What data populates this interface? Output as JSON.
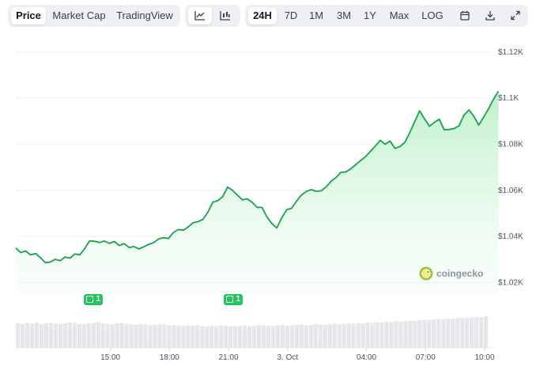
{
  "toolbar": {
    "view_tabs": [
      "Price",
      "Market Cap",
      "TradingView"
    ],
    "active_view": "Price",
    "chart_type_icons": [
      "line-chart-icon",
      "candlestick-chart-icon"
    ],
    "ranges": [
      "24H",
      "7D",
      "1M",
      "3M",
      "1Y",
      "Max",
      "LOG"
    ],
    "active_range": "24H",
    "tool_icons": [
      "calendar-icon",
      "download-icon",
      "expand-icon"
    ]
  },
  "brand": {
    "name": "coingecko"
  },
  "markers": [
    {
      "label": "1",
      "x_time": "15:00"
    },
    {
      "label": "1",
      "x_time": "21:00"
    }
  ],
  "colors": {
    "line": "#16a34a",
    "area_top": "#bbf0c8",
    "grid": "#eef0f3",
    "volume": "#e5e7eb",
    "marker": "#22c55e"
  },
  "chart_data": {
    "type": "area",
    "title": "",
    "xlabel": "",
    "ylabel": "",
    "ylim": [
      1015,
      1122
    ],
    "y_ticks": [
      "$1.12K",
      "$1.1K",
      "$1.08K",
      "$1.06K",
      "$1.04K",
      "$1.02K"
    ],
    "y_tick_values": [
      1120,
      1100,
      1080,
      1060,
      1040,
      1020
    ],
    "x_ticks": [
      "15:00",
      "18:00",
      "21:00",
      "3. Oct",
      "04:00",
      "07:00",
      "10:00"
    ],
    "x_tick_hours": [
      15,
      18,
      21,
      24,
      28,
      31,
      34
    ],
    "x_range_hours": [
      10.2,
      34.2
    ],
    "grid": true,
    "series": [
      {
        "values": [
          [
            10.2,
            1035.0
          ],
          [
            10.45,
            1033.0
          ],
          [
            10.7,
            1033.7
          ],
          [
            10.95,
            1032.0
          ],
          [
            11.2,
            1032.6
          ],
          [
            11.45,
            1030.8
          ],
          [
            11.7,
            1028.6
          ],
          [
            11.95,
            1028.9
          ],
          [
            12.2,
            1030.1
          ],
          [
            12.45,
            1029.5
          ],
          [
            12.7,
            1031.1
          ],
          [
            12.95,
            1030.6
          ],
          [
            13.2,
            1032.4
          ],
          [
            13.45,
            1032.0
          ],
          [
            13.7,
            1034.8
          ],
          [
            13.95,
            1038.1
          ],
          [
            14.2,
            1037.9
          ],
          [
            14.45,
            1037.4
          ],
          [
            14.7,
            1038.0
          ],
          [
            14.95,
            1037.0
          ],
          [
            15.2,
            1037.8
          ],
          [
            15.45,
            1036.1
          ],
          [
            15.7,
            1036.9
          ],
          [
            15.95,
            1035.2
          ],
          [
            16.2,
            1035.6
          ],
          [
            16.45,
            1034.6
          ],
          [
            16.7,
            1035.5
          ],
          [
            16.95,
            1036.6
          ],
          [
            17.2,
            1037.3
          ],
          [
            17.45,
            1038.9
          ],
          [
            17.7,
            1039.5
          ],
          [
            17.95,
            1039.1
          ],
          [
            18.2,
            1041.7
          ],
          [
            18.45,
            1043.0
          ],
          [
            18.7,
            1042.7
          ],
          [
            18.95,
            1044.1
          ],
          [
            19.2,
            1045.9
          ],
          [
            19.45,
            1046.4
          ],
          [
            19.7,
            1047.4
          ],
          [
            19.95,
            1050.5
          ],
          [
            20.2,
            1054.9
          ],
          [
            20.45,
            1055.5
          ],
          [
            20.7,
            1057.2
          ],
          [
            20.95,
            1061.4
          ],
          [
            21.2,
            1060.0
          ],
          [
            21.45,
            1057.9
          ],
          [
            21.7,
            1055.9
          ],
          [
            21.95,
            1056.3
          ],
          [
            22.2,
            1054.8
          ],
          [
            22.45,
            1052.6
          ],
          [
            22.7,
            1052.6
          ],
          [
            22.95,
            1048.4
          ],
          [
            23.2,
            1045.6
          ],
          [
            23.45,
            1043.7
          ],
          [
            23.7,
            1048.1
          ],
          [
            23.95,
            1051.6
          ],
          [
            24.2,
            1052.2
          ],
          [
            24.45,
            1055.3
          ],
          [
            24.7,
            1058.0
          ],
          [
            24.95,
            1059.5
          ],
          [
            25.2,
            1060.3
          ],
          [
            25.45,
            1059.6
          ],
          [
            25.7,
            1059.8
          ],
          [
            25.95,
            1061.4
          ],
          [
            26.2,
            1063.9
          ],
          [
            26.45,
            1065.5
          ],
          [
            26.7,
            1067.8
          ],
          [
            26.95,
            1068.0
          ],
          [
            27.2,
            1069.3
          ],
          [
            27.45,
            1071.1
          ],
          [
            27.7,
            1072.9
          ],
          [
            27.95,
            1074.6
          ],
          [
            28.2,
            1076.9
          ],
          [
            28.45,
            1079.2
          ],
          [
            28.7,
            1081.7
          ],
          [
            28.95,
            1080.0
          ],
          [
            29.2,
            1081.4
          ],
          [
            29.45,
            1078.2
          ],
          [
            29.7,
            1079.0
          ],
          [
            29.95,
            1080.8
          ],
          [
            30.2,
            1085.0
          ],
          [
            30.45,
            1089.8
          ],
          [
            30.7,
            1094.5
          ],
          [
            30.95,
            1091.0
          ],
          [
            31.2,
            1087.8
          ],
          [
            31.45,
            1089.5
          ],
          [
            31.7,
            1090.9
          ],
          [
            31.95,
            1086.3
          ],
          [
            32.2,
            1086.4
          ],
          [
            32.45,
            1086.8
          ],
          [
            32.7,
            1088.0
          ],
          [
            32.95,
            1092.6
          ],
          [
            33.2,
            1094.9
          ],
          [
            33.45,
            1092.2
          ],
          [
            33.7,
            1088.3
          ],
          [
            33.95,
            1091.8
          ],
          [
            34.2,
            1095.4
          ],
          [
            34.45,
            1099.5
          ],
          [
            34.7,
            1103.0
          ]
        ]
      }
    ],
    "volume": [
      0.62,
      0.6,
      0.63,
      0.61,
      0.64,
      0.6,
      0.62,
      0.63,
      0.61,
      0.6,
      0.62,
      0.64,
      0.63,
      0.61,
      0.6,
      0.62,
      0.63,
      0.65,
      0.62,
      0.61,
      0.6,
      0.62,
      0.63,
      0.61,
      0.59,
      0.58,
      0.6,
      0.59,
      0.57,
      0.58,
      0.6,
      0.59,
      0.57,
      0.58,
      0.56,
      0.55,
      0.57,
      0.56,
      0.58,
      0.55,
      0.54,
      0.56,
      0.55,
      0.57,
      0.56,
      0.54,
      0.55,
      0.56,
      0.57,
      0.55,
      0.56,
      0.58,
      0.57,
      0.56,
      0.55,
      0.57,
      0.58,
      0.56,
      0.57,
      0.58,
      0.59,
      0.57,
      0.58,
      0.6,
      0.59,
      0.58,
      0.6,
      0.61,
      0.59,
      0.6,
      0.62,
      0.61,
      0.63,
      0.62,
      0.64,
      0.63,
      0.65,
      0.64,
      0.66,
      0.65,
      0.67,
      0.66,
      0.68,
      0.69,
      0.68,
      0.7,
      0.71,
      0.7,
      0.72,
      0.73,
      0.72,
      0.74,
      0.73,
      0.75,
      0.76,
      0.75,
      0.77,
      0.78,
      0.77,
      0.8
    ]
  }
}
